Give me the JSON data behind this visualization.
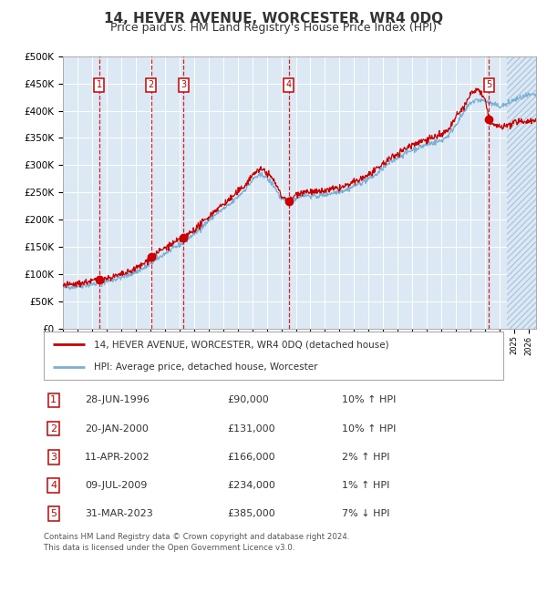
{
  "title": "14, HEVER AVENUE, WORCESTER, WR4 0DQ",
  "subtitle": "Price paid vs. HM Land Registry's House Price Index (HPI)",
  "ylim": [
    0,
    500000
  ],
  "yticks": [
    0,
    50000,
    100000,
    150000,
    200000,
    250000,
    300000,
    350000,
    400000,
    450000,
    500000
  ],
  "ytick_labels": [
    "£0",
    "£50K",
    "£100K",
    "£150K",
    "£200K",
    "£250K",
    "£300K",
    "£350K",
    "£400K",
    "£450K",
    "£500K"
  ],
  "xlim_start": 1994.0,
  "xlim_end": 2026.5,
  "background_color": "#dce9f5",
  "hatch_color": "#b8cfe0",
  "grid_color": "#ffffff",
  "future_start": 2024.5,
  "sale_dates": [
    1996.49,
    2000.05,
    2002.28,
    2009.52,
    2023.25
  ],
  "sale_prices": [
    90000,
    131000,
    166000,
    234000,
    385000
  ],
  "sale_labels": [
    "1",
    "2",
    "3",
    "4",
    "5"
  ],
  "sale_line_color": "#cc0000",
  "hpi_line_color": "#7ab0d4",
  "dot_color": "#cc0000",
  "dashed_line_color": "#cc0000",
  "legend_entries": [
    "14, HEVER AVENUE, WORCESTER, WR4 0DQ (detached house)",
    "HPI: Average price, detached house, Worcester"
  ],
  "table_rows": [
    [
      "1",
      "28-JUN-1996",
      "£90,000",
      "10% ↑ HPI"
    ],
    [
      "2",
      "20-JAN-2000",
      "£131,000",
      "10% ↑ HPI"
    ],
    [
      "3",
      "11-APR-2002",
      "£166,000",
      "2% ↑ HPI"
    ],
    [
      "4",
      "09-JUL-2009",
      "£234,000",
      "1% ↑ HPI"
    ],
    [
      "5",
      "31-MAR-2023",
      "£385,000",
      "7% ↓ HPI"
    ]
  ],
  "footnote": "Contains HM Land Registry data © Crown copyright and database right 2024.\nThis data is licensed under the Open Government Licence v3.0.",
  "title_fontsize": 11,
  "subtitle_fontsize": 9,
  "axis_fontsize": 7.5,
  "label_box_color": "#cc0000",
  "label_text_color": "#cc0000",
  "text_color": "#333333"
}
